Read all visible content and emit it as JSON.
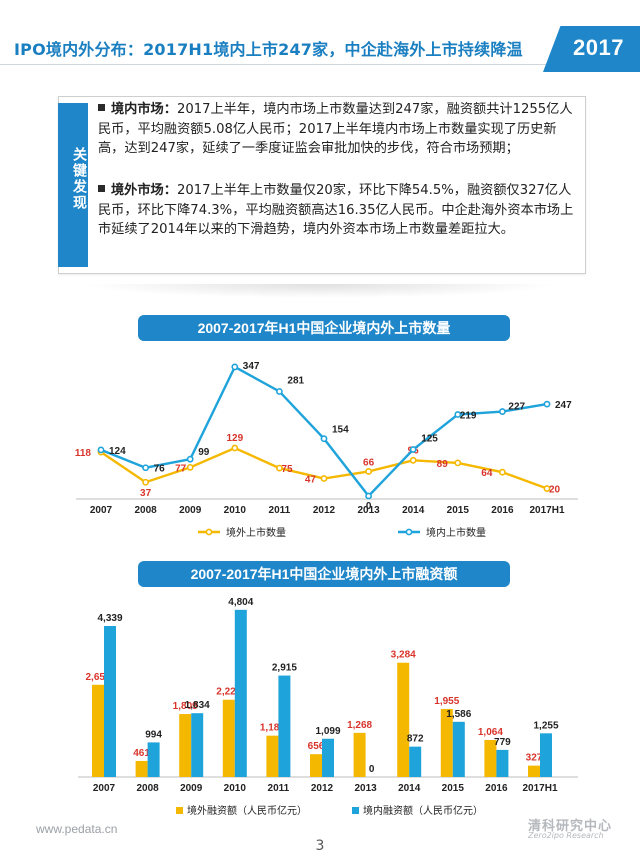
{
  "header": {
    "title": "IPO境内外分布：2017H1境内上市247家，中企赴海外上市持续降温",
    "year": "2017"
  },
  "key_findings": {
    "label": "关键发现",
    "domestic": {
      "keyword": "境内市场：",
      "text": "2017上半年，境内市场上市数量达到247家，融资额共计1255亿人民币，平均融资额5.08亿人民币；2017上半年境内市场上市数量实现了历史新高，达到247家，延续了一季度证监会审批加快的步伐，符合市场预期；"
    },
    "overseas": {
      "keyword": "境外市场：",
      "text": "2017上半年上市数量仅20家，环比下降54.5%，融资额仅327亿人民币，环比下降74.3%，平均融资额高达16.35亿人民币。中企赴海外资本市场上市延续了2014年以来的下滑趋势，境内外资本市场上市数量差距拉大。"
    }
  },
  "chart_data": [
    {
      "type": "line",
      "title": "2007-2017年H1中国企业境内外上市数量",
      "categories": [
        "2007",
        "2008",
        "2009",
        "2010",
        "2011",
        "2012",
        "2013",
        "2014",
        "2015",
        "2016",
        "2017H1"
      ],
      "series": [
        {
          "name": "境外上市数量",
          "color": "#f5b800",
          "label_color": "#d9342b",
          "values": [
            118,
            37,
            77,
            129,
            75,
            47,
            66,
            96,
            89,
            64,
            20
          ]
        },
        {
          "name": "境内上市数量",
          "color": "#1fa3db",
          "label_color": "#222222",
          "values": [
            124,
            76,
            99,
            347,
            281,
            154,
            0,
            125,
            219,
            227,
            247
          ]
        }
      ],
      "ylim": [
        0,
        360
      ],
      "legend": "bottom"
    },
    {
      "type": "bar",
      "title": "2007-2017年H1中国企业境内外上市融资额",
      "categories": [
        "2007",
        "2008",
        "2009",
        "2010",
        "2011",
        "2012",
        "2013",
        "2014",
        "2015",
        "2016",
        "2017H1"
      ],
      "series": [
        {
          "name": "境外融资额（人民币亿元）",
          "color": "#f5b800",
          "label_color": "#d9342b",
          "values": [
            2650,
            461,
            1809,
            2220,
            1188,
            656,
            1268,
            3284,
            1955,
            1064,
            327
          ]
        },
        {
          "name": "境内融资额（人民币亿元）",
          "color": "#1fa3db",
          "label_color": "#222222",
          "values": [
            4339,
            994,
            1834,
            4804,
            2915,
            1099,
            0,
            872,
            1586,
            779,
            1255
          ]
        }
      ],
      "ylim": [
        0,
        5000
      ],
      "legend": "bottom"
    }
  ],
  "footer": {
    "url": "www.pedata.cn",
    "page": "3",
    "logo_cn": "清科研究中心",
    "logo_en": "Zero2ipo Research"
  }
}
